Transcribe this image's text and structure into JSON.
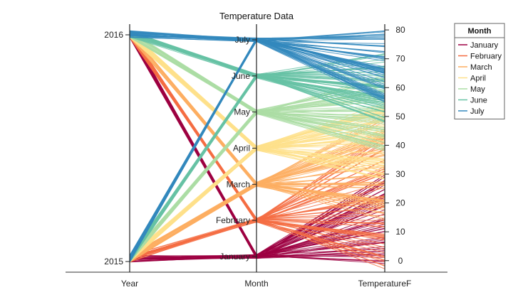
{
  "chart_data": {
    "type": "parallel_coordinates",
    "title": "Temperature Data",
    "dimensions": [
      "Year",
      "Month",
      "TemperatureF"
    ],
    "year_ticks": [
      "2015",
      "2016"
    ],
    "month_ticks": [
      "January",
      "February",
      "March",
      "April",
      "May",
      "June",
      "July"
    ],
    "temperature_ticks": [
      0,
      10,
      20,
      30,
      40,
      50,
      60,
      70,
      80
    ],
    "temperature_range": [
      -4,
      82
    ],
    "legend_title": "Month",
    "series": [
      {
        "name": "January",
        "color": "#9e0142",
        "temp_range": [
          -1,
          30
        ],
        "year2016_share": 0.5
      },
      {
        "name": "February",
        "color": "#f46d43",
        "temp_range": [
          -3,
          45
        ],
        "year2016_share": 0.5
      },
      {
        "name": "March",
        "color": "#fdae61",
        "temp_range": [
          14,
          52
        ],
        "year2016_share": 0.5
      },
      {
        "name": "April",
        "color": "#fee08b",
        "temp_range": [
          28,
          55
        ],
        "year2016_share": 0.5
      },
      {
        "name": "May",
        "color": "#abdda4",
        "temp_range": [
          38,
          65
        ],
        "year2016_share": 0.5
      },
      {
        "name": "June",
        "color": "#66c2a5",
        "temp_range": [
          48,
          72
        ],
        "year2016_share": 0.5
      },
      {
        "name": "July",
        "color": "#3288bd",
        "temp_range": [
          55,
          80
        ],
        "year2016_share": 0.5
      }
    ]
  }
}
